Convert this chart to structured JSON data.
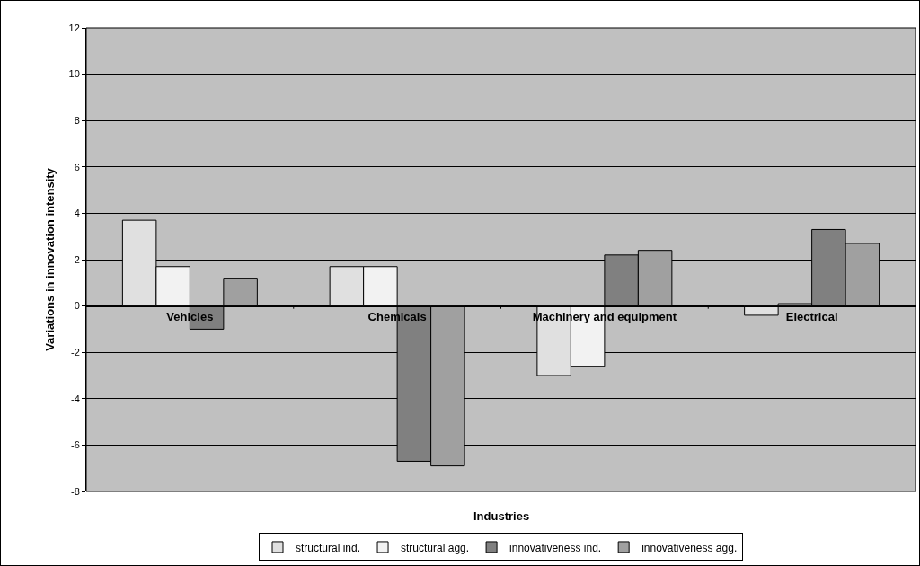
{
  "chart_data": {
    "type": "bar",
    "xlabel": "Industries",
    "ylabel": "Variations in innovation intensity",
    "categories": [
      "Vehicles",
      "Chemicals",
      "Machinery and equipment",
      "Electrical"
    ],
    "series": [
      {
        "name": "structural ind.",
        "color": "#e0e0e0",
        "values": [
          3.7,
          1.7,
          -3.0,
          -0.4
        ]
      },
      {
        "name": "structural agg.",
        "color": "#f2f2f2",
        "values": [
          1.7,
          1.7,
          -2.6,
          0.1
        ]
      },
      {
        "name": "innovativeness ind.",
        "color": "#808080",
        "values": [
          -1.0,
          -6.7,
          2.2,
          3.3
        ]
      },
      {
        "name": "innovativeness agg.",
        "color": "#a0a0a0",
        "values": [
          1.2,
          -6.9,
          2.4,
          2.7
        ]
      }
    ],
    "ylim": [
      -8,
      12
    ],
    "yticks": [
      -8,
      -6,
      -4,
      -2,
      0,
      2,
      4,
      6,
      8,
      10,
      12
    ],
    "grid": "y",
    "legend": "bottom"
  }
}
